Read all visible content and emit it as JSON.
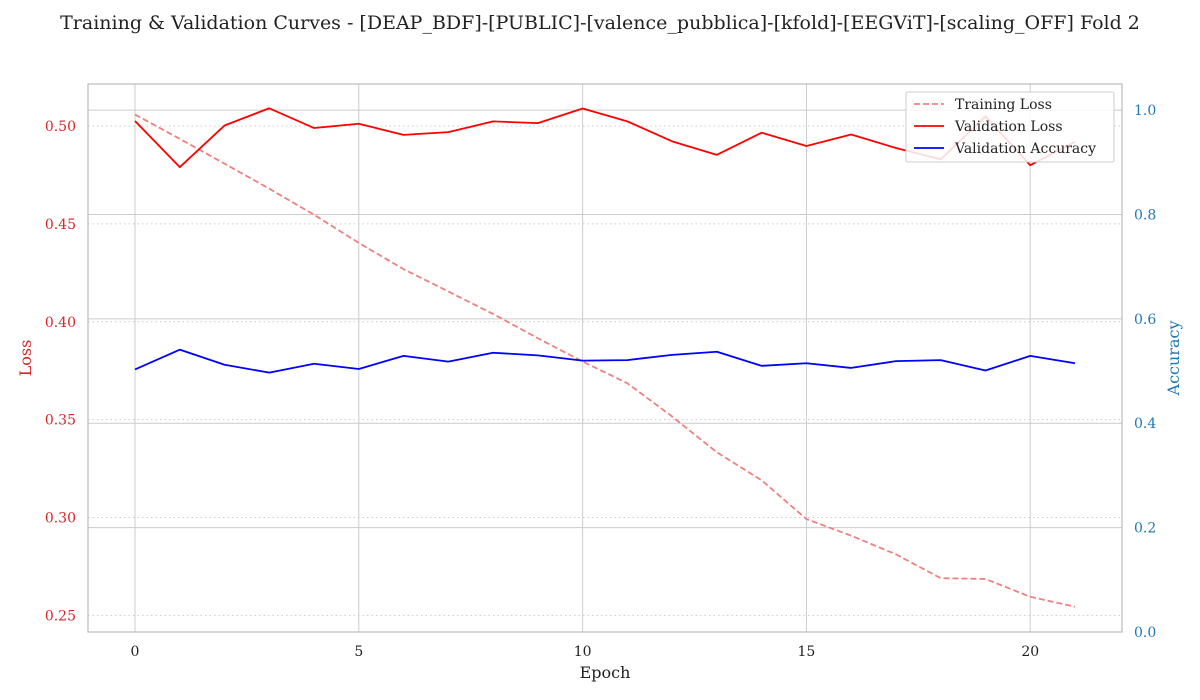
{
  "chart_data": {
    "type": "line",
    "title": "Training & Validation Curves - [DEAP_BDF]-[PUBLIC]-[valence_pubblica]-[kfold]-[EEGViT]-[scaling_OFF] Fold 2",
    "xlabel": "Epoch",
    "ylabel_left": "Loss",
    "ylabel_right": "Accuracy",
    "xlim": [
      -1.05,
      22.05
    ],
    "ylim_left": [
      0.2415,
      0.5215
    ],
    "ylim_right": [
      0.0,
      1.05
    ],
    "x_ticks": [
      0,
      5,
      10,
      15,
      20
    ],
    "y_ticks_left": [
      0.25,
      0.3,
      0.35,
      0.4,
      0.45,
      0.5
    ],
    "y_ticks_right": [
      0.0,
      0.2,
      0.4,
      0.6,
      0.8,
      1.0
    ],
    "grid": true,
    "legend_position": "top-right",
    "colors": {
      "training_loss": "#f08080",
      "validation_loss": "#ff0000",
      "validation_accuracy": "#0000ff",
      "loss_axis": "#d62728",
      "accuracy_axis": "#1f77b4",
      "grid": "#cccccc",
      "spine": "#bbbbbb"
    },
    "x": [
      0,
      1,
      2,
      3,
      4,
      5,
      6,
      7,
      8,
      9,
      10,
      11,
      12,
      13,
      14,
      15,
      16,
      17,
      18,
      19,
      20,
      21
    ],
    "series": [
      {
        "name": "Training Loss",
        "axis": "left",
        "style": "dashed",
        "values": [
          0.5059,
          0.4935,
          0.4808,
          0.468,
          0.4547,
          0.4403,
          0.4269,
          0.4155,
          0.404,
          0.3916,
          0.3797,
          0.3686,
          0.3516,
          0.3333,
          0.319,
          0.2992,
          0.2907,
          0.2812,
          0.269,
          0.2686,
          0.2595,
          0.2544
        ]
      },
      {
        "name": "Validation Loss",
        "axis": "left",
        "style": "solid",
        "values": [
          0.5026,
          0.479,
          0.5003,
          0.5091,
          0.499,
          0.5012,
          0.4955,
          0.4969,
          0.5024,
          0.5015,
          0.509,
          0.5024,
          0.4922,
          0.4853,
          0.4966,
          0.4898,
          0.4957,
          0.4888,
          0.483,
          0.505,
          0.48,
          0.492
        ]
      },
      {
        "name": "Validation Accuracy",
        "axis": "right",
        "style": "solid",
        "values": [
          0.503,
          0.541,
          0.512,
          0.497,
          0.514,
          0.504,
          0.529,
          0.518,
          0.535,
          0.53,
          0.52,
          0.521,
          0.531,
          0.537,
          0.51,
          0.515,
          0.506,
          0.519,
          0.521,
          0.501,
          0.529,
          0.515
        ]
      }
    ]
  }
}
